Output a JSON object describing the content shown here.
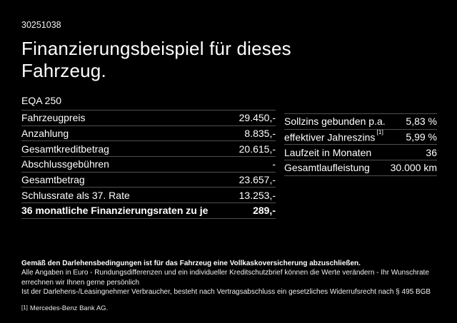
{
  "header": {
    "reference_number": "30251038",
    "title": "Finanzierungsbeispiel für dieses Fahrzeug.",
    "model": "EQA 250"
  },
  "financing_table": {
    "rows": [
      {
        "label": "Fahrzeugpreis",
        "value": "29.450,-"
      },
      {
        "label": "Anzahlung",
        "value": "8.835,-"
      },
      {
        "label": "Gesamtkreditbetrag",
        "value": "20.615,-"
      },
      {
        "label": "Abschlussgebühren",
        "value": "-"
      },
      {
        "label": "Gesamtbetrag",
        "value": "23.657,-"
      },
      {
        "label": "Schlussrate als 37. Rate",
        "value": "13.253,-"
      },
      {
        "label": "36 monatliche Finanzierungsraten zu je",
        "value": "289,-"
      }
    ]
  },
  "conditions_table": {
    "rows": [
      {
        "label": "Sollzins gebunden p.a.",
        "value": "5,83 %"
      },
      {
        "label": "effektiver Jahreszins",
        "sup": "[1]",
        "value": "5,99 %"
      },
      {
        "label": "Laufzeit in Monaten",
        "value": "36"
      },
      {
        "label": "Gesamtlaufleistung",
        "value": "30.000 km"
      }
    ]
  },
  "disclaimer": {
    "insurance_note": "Gemäß den Darlehensbedingungen ist für das Fahrzeug eine Vollkaskoversicherung abzuschließen.",
    "line1": "Alle Angaben in Euro - Rundungsdifferenzen und ein individueller Kreditschutzbrief können die Werte verändern - Ihr Wunschrate errechnen wir Ihnen gerne persönlich",
    "line2": "Ist der Darlehens-/Leasingnehmer Verbraucher, besteht nach Vertragsabschluss ein gesetzliches Widerrufsrecht nach § 495 BGB",
    "footnote_marker": "[1]",
    "footnote_text": "Mercedes-Benz Bank AG."
  },
  "colors": {
    "background": "#000000",
    "text": "#ffffff",
    "divider": "#4f4f4f"
  }
}
